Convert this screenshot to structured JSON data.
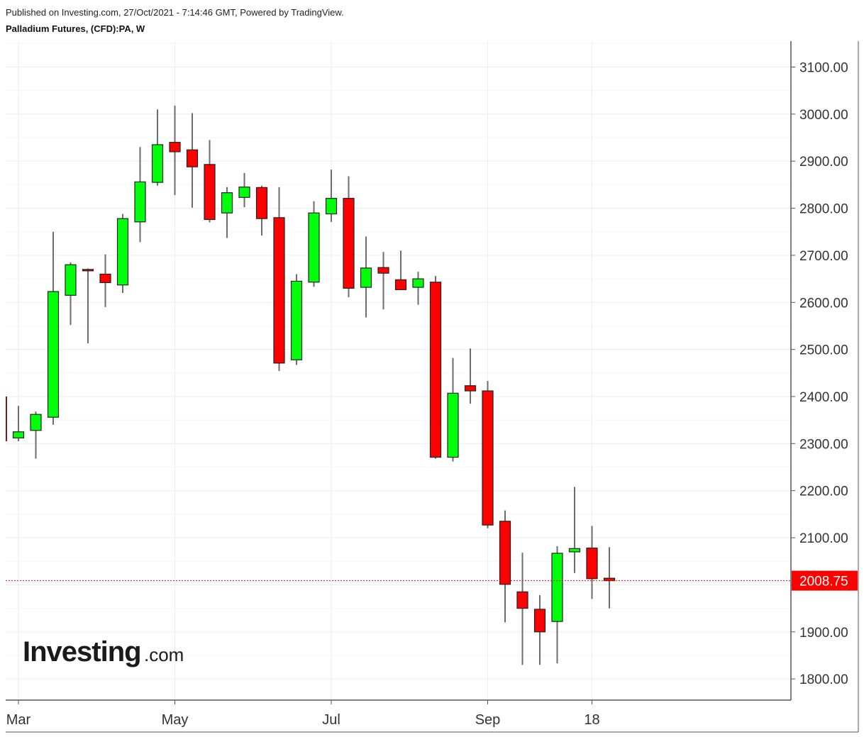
{
  "header": {
    "published": "Published on Investing.com, 27/Oct/2021 - 7:14:46 GMT, Powered by TradingView.",
    "symbol": "Palladium Futures, (CFD):PA, W"
  },
  "logo": {
    "main": "Investing",
    "suffix": ".com"
  },
  "colors": {
    "up": "#00ff0a",
    "down": "#ff0000",
    "wick": "#6d6d6d",
    "outline": "#222222",
    "last_price": "#ff0000"
  },
  "chart_data": {
    "type": "candlestick",
    "title": "Palladium Futures, (CFD):PA, W",
    "ylim": [
      1755,
      3155
    ],
    "y_ticks": [
      1800,
      1900,
      2000,
      2100,
      2200,
      2300,
      2400,
      2500,
      2600,
      2700,
      2800,
      2900,
      3000,
      3100
    ],
    "y_tick_labels": [
      "1800.00",
      "1900.00",
      "2000.00",
      "2100.00",
      "2200.00",
      "2300.00",
      "2400.00",
      "2500.00",
      "2600.00",
      "2700.00",
      "2800.00",
      "2900.00",
      "3000.00",
      "3100.00"
    ],
    "x_ticks": [
      {
        "label": "Mar",
        "index": 0
      },
      {
        "label": "May",
        "index": 9
      },
      {
        "label": "Jul",
        "index": 18
      },
      {
        "label": "Sep",
        "index": 27
      },
      {
        "label": "18",
        "index": 33
      }
    ],
    "last_price": 2008.75,
    "last_price_label": "2008.75",
    "grid": true,
    "candles": [
      {
        "o": 2312,
        "h": 2380,
        "l": 2305,
        "c": 2325
      },
      {
        "o": 2328,
        "h": 2368,
        "l": 2268,
        "c": 2362
      },
      {
        "o": 2356,
        "h": 2750,
        "l": 2340,
        "c": 2623
      },
      {
        "o": 2615,
        "h": 2685,
        "l": 2552,
        "c": 2680
      },
      {
        "o": 2670,
        "h": 2672,
        "l": 2513,
        "c": 2668
      },
      {
        "o": 2660,
        "h": 2702,
        "l": 2590,
        "c": 2642
      },
      {
        "o": 2637,
        "h": 2788,
        "l": 2620,
        "c": 2778
      },
      {
        "o": 2771,
        "h": 2930,
        "l": 2728,
        "c": 2856
      },
      {
        "o": 2855,
        "h": 3010,
        "l": 2848,
        "c": 2935
      },
      {
        "o": 2940,
        "h": 3018,
        "l": 2828,
        "c": 2920
      },
      {
        "o": 2924,
        "h": 3002,
        "l": 2801,
        "c": 2888
      },
      {
        "o": 2893,
        "h": 2945,
        "l": 2770,
        "c": 2776
      },
      {
        "o": 2790,
        "h": 2845,
        "l": 2737,
        "c": 2833
      },
      {
        "o": 2823,
        "h": 2875,
        "l": 2802,
        "c": 2845
      },
      {
        "o": 2844,
        "h": 2848,
        "l": 2742,
        "c": 2778
      },
      {
        "o": 2780,
        "h": 2845,
        "l": 2454,
        "c": 2471
      },
      {
        "o": 2478,
        "h": 2660,
        "l": 2467,
        "c": 2645
      },
      {
        "o": 2643,
        "h": 2815,
        "l": 2633,
        "c": 2790
      },
      {
        "o": 2788,
        "h": 2882,
        "l": 2771,
        "c": 2821
      },
      {
        "o": 2821,
        "h": 2868,
        "l": 2611,
        "c": 2630
      },
      {
        "o": 2632,
        "h": 2740,
        "l": 2568,
        "c": 2673
      },
      {
        "o": 2674,
        "h": 2707,
        "l": 2585,
        "c": 2662
      },
      {
        "o": 2648,
        "h": 2710,
        "l": 2627,
        "c": 2627
      },
      {
        "o": 2632,
        "h": 2665,
        "l": 2595,
        "c": 2650
      },
      {
        "o": 2643,
        "h": 2656,
        "l": 2268,
        "c": 2271
      },
      {
        "o": 2271,
        "h": 2482,
        "l": 2262,
        "c": 2407
      },
      {
        "o": 2423,
        "h": 2502,
        "l": 2385,
        "c": 2412
      },
      {
        "o": 2412,
        "h": 2433,
        "l": 2120,
        "c": 2127
      },
      {
        "o": 2135,
        "h": 2158,
        "l": 1920,
        "c": 2001
      },
      {
        "o": 1985,
        "h": 2068,
        "l": 1830,
        "c": 1950
      },
      {
        "o": 1948,
        "h": 1978,
        "l": 1830,
        "c": 1900
      },
      {
        "o": 1922,
        "h": 2082,
        "l": 1833,
        "c": 2067
      },
      {
        "o": 2070,
        "h": 2208,
        "l": 2025,
        "c": 2077
      },
      {
        "o": 2078,
        "h": 2125,
        "l": 1970,
        "c": 2013
      },
      {
        "o": 2014,
        "h": 2080,
        "l": 1950,
        "c": 2008.75
      }
    ]
  }
}
